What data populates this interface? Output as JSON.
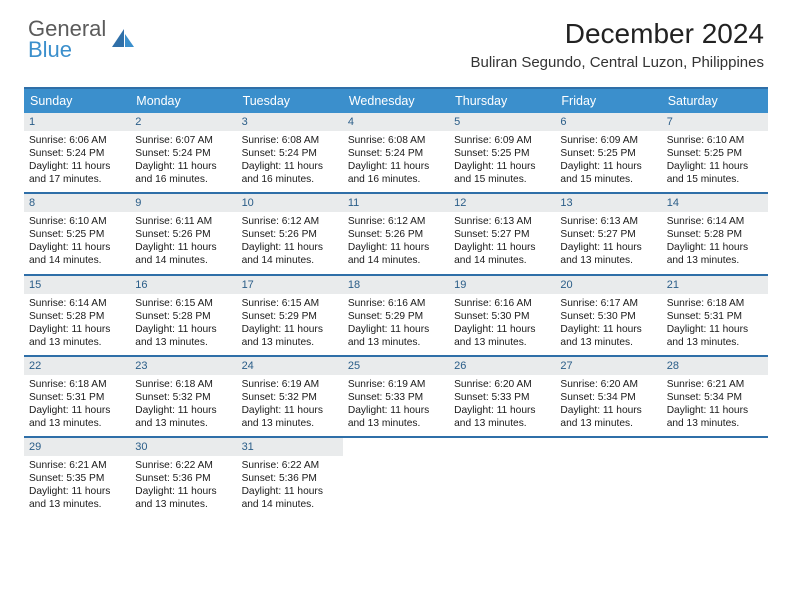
{
  "brand": {
    "general": "General",
    "blue": "Blue"
  },
  "header": {
    "title": "December 2024",
    "subtitle": "Buliran Segundo, Central Luzon, Philippines"
  },
  "colors": {
    "header_bg": "#3b8fcc",
    "divider": "#2f6fa8",
    "daynum_bg": "#e9ebec",
    "daynum_fg": "#2a5d88"
  },
  "day_names": [
    "Sunday",
    "Monday",
    "Tuesday",
    "Wednesday",
    "Thursday",
    "Friday",
    "Saturday"
  ],
  "weeks": [
    [
      {
        "n": "1",
        "sr": "Sunrise: 6:06 AM",
        "ss": "Sunset: 5:24 PM",
        "dl": "Daylight: 11 hours and 17 minutes."
      },
      {
        "n": "2",
        "sr": "Sunrise: 6:07 AM",
        "ss": "Sunset: 5:24 PM",
        "dl": "Daylight: 11 hours and 16 minutes."
      },
      {
        "n": "3",
        "sr": "Sunrise: 6:08 AM",
        "ss": "Sunset: 5:24 PM",
        "dl": "Daylight: 11 hours and 16 minutes."
      },
      {
        "n": "4",
        "sr": "Sunrise: 6:08 AM",
        "ss": "Sunset: 5:24 PM",
        "dl": "Daylight: 11 hours and 16 minutes."
      },
      {
        "n": "5",
        "sr": "Sunrise: 6:09 AM",
        "ss": "Sunset: 5:25 PM",
        "dl": "Daylight: 11 hours and 15 minutes."
      },
      {
        "n": "6",
        "sr": "Sunrise: 6:09 AM",
        "ss": "Sunset: 5:25 PM",
        "dl": "Daylight: 11 hours and 15 minutes."
      },
      {
        "n": "7",
        "sr": "Sunrise: 6:10 AM",
        "ss": "Sunset: 5:25 PM",
        "dl": "Daylight: 11 hours and 15 minutes."
      }
    ],
    [
      {
        "n": "8",
        "sr": "Sunrise: 6:10 AM",
        "ss": "Sunset: 5:25 PM",
        "dl": "Daylight: 11 hours and 14 minutes."
      },
      {
        "n": "9",
        "sr": "Sunrise: 6:11 AM",
        "ss": "Sunset: 5:26 PM",
        "dl": "Daylight: 11 hours and 14 minutes."
      },
      {
        "n": "10",
        "sr": "Sunrise: 6:12 AM",
        "ss": "Sunset: 5:26 PM",
        "dl": "Daylight: 11 hours and 14 minutes."
      },
      {
        "n": "11",
        "sr": "Sunrise: 6:12 AM",
        "ss": "Sunset: 5:26 PM",
        "dl": "Daylight: 11 hours and 14 minutes."
      },
      {
        "n": "12",
        "sr": "Sunrise: 6:13 AM",
        "ss": "Sunset: 5:27 PM",
        "dl": "Daylight: 11 hours and 14 minutes."
      },
      {
        "n": "13",
        "sr": "Sunrise: 6:13 AM",
        "ss": "Sunset: 5:27 PM",
        "dl": "Daylight: 11 hours and 13 minutes."
      },
      {
        "n": "14",
        "sr": "Sunrise: 6:14 AM",
        "ss": "Sunset: 5:28 PM",
        "dl": "Daylight: 11 hours and 13 minutes."
      }
    ],
    [
      {
        "n": "15",
        "sr": "Sunrise: 6:14 AM",
        "ss": "Sunset: 5:28 PM",
        "dl": "Daylight: 11 hours and 13 minutes."
      },
      {
        "n": "16",
        "sr": "Sunrise: 6:15 AM",
        "ss": "Sunset: 5:28 PM",
        "dl": "Daylight: 11 hours and 13 minutes."
      },
      {
        "n": "17",
        "sr": "Sunrise: 6:15 AM",
        "ss": "Sunset: 5:29 PM",
        "dl": "Daylight: 11 hours and 13 minutes."
      },
      {
        "n": "18",
        "sr": "Sunrise: 6:16 AM",
        "ss": "Sunset: 5:29 PM",
        "dl": "Daylight: 11 hours and 13 minutes."
      },
      {
        "n": "19",
        "sr": "Sunrise: 6:16 AM",
        "ss": "Sunset: 5:30 PM",
        "dl": "Daylight: 11 hours and 13 minutes."
      },
      {
        "n": "20",
        "sr": "Sunrise: 6:17 AM",
        "ss": "Sunset: 5:30 PM",
        "dl": "Daylight: 11 hours and 13 minutes."
      },
      {
        "n": "21",
        "sr": "Sunrise: 6:18 AM",
        "ss": "Sunset: 5:31 PM",
        "dl": "Daylight: 11 hours and 13 minutes."
      }
    ],
    [
      {
        "n": "22",
        "sr": "Sunrise: 6:18 AM",
        "ss": "Sunset: 5:31 PM",
        "dl": "Daylight: 11 hours and 13 minutes."
      },
      {
        "n": "23",
        "sr": "Sunrise: 6:18 AM",
        "ss": "Sunset: 5:32 PM",
        "dl": "Daylight: 11 hours and 13 minutes."
      },
      {
        "n": "24",
        "sr": "Sunrise: 6:19 AM",
        "ss": "Sunset: 5:32 PM",
        "dl": "Daylight: 11 hours and 13 minutes."
      },
      {
        "n": "25",
        "sr": "Sunrise: 6:19 AM",
        "ss": "Sunset: 5:33 PM",
        "dl": "Daylight: 11 hours and 13 minutes."
      },
      {
        "n": "26",
        "sr": "Sunrise: 6:20 AM",
        "ss": "Sunset: 5:33 PM",
        "dl": "Daylight: 11 hours and 13 minutes."
      },
      {
        "n": "27",
        "sr": "Sunrise: 6:20 AM",
        "ss": "Sunset: 5:34 PM",
        "dl": "Daylight: 11 hours and 13 minutes."
      },
      {
        "n": "28",
        "sr": "Sunrise: 6:21 AM",
        "ss": "Sunset: 5:34 PM",
        "dl": "Daylight: 11 hours and 13 minutes."
      }
    ],
    [
      {
        "n": "29",
        "sr": "Sunrise: 6:21 AM",
        "ss": "Sunset: 5:35 PM",
        "dl": "Daylight: 11 hours and 13 minutes."
      },
      {
        "n": "30",
        "sr": "Sunrise: 6:22 AM",
        "ss": "Sunset: 5:36 PM",
        "dl": "Daylight: 11 hours and 13 minutes."
      },
      {
        "n": "31",
        "sr": "Sunrise: 6:22 AM",
        "ss": "Sunset: 5:36 PM",
        "dl": "Daylight: 11 hours and 14 minutes."
      },
      {
        "empty": true
      },
      {
        "empty": true
      },
      {
        "empty": true
      },
      {
        "empty": true
      }
    ]
  ]
}
